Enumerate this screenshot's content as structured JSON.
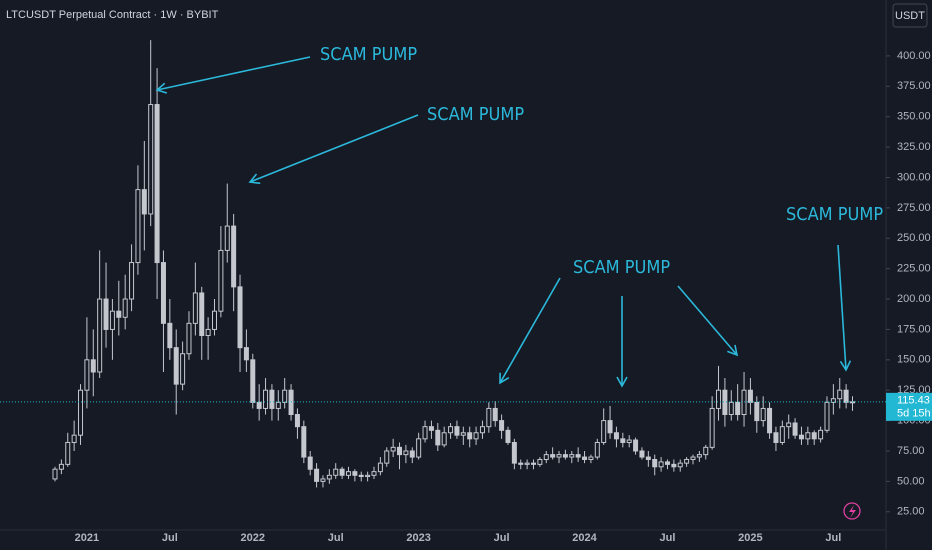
{
  "chart_data": {
    "type": "candlestick",
    "title": "LTCUSDT Perpetual Contract · 1W · BYBIT",
    "currency": "USDT",
    "annotations": [
      "SCAM PUMP",
      "SCAM PUMP",
      "SCAM PUMP",
      "SCAM PUMP"
    ],
    "last_price": 115.43,
    "countdown": "5d 15h",
    "color": "#c4c7ce",
    "last_price_color": "#22b8d4",
    "ylim": [
      10,
      446
    ],
    "yticks": [
      {
        "value": 25,
        "label": "25.00"
      },
      {
        "value": 50,
        "label": "50.00"
      },
      {
        "value": 75,
        "label": "75.00"
      },
      {
        "value": 100,
        "label": "100.00"
      },
      {
        "value": 125,
        "label": "125.00"
      },
      {
        "value": 150,
        "label": "150.00"
      },
      {
        "value": 175,
        "label": "175.00"
      },
      {
        "value": 200,
        "label": "200.00"
      },
      {
        "value": 225,
        "label": "225.00"
      },
      {
        "value": 250,
        "label": "250.00"
      },
      {
        "value": 275,
        "label": "275.00"
      },
      {
        "value": 300,
        "label": "300.00"
      },
      {
        "value": 325,
        "label": "325.00"
      },
      {
        "value": 350,
        "label": "350.00"
      },
      {
        "value": 375,
        "label": "375.00"
      },
      {
        "value": 400,
        "label": "400.00"
      }
    ],
    "categories": [
      null,
      null,
      null,
      null,
      null,
      "2021",
      null,
      null,
      null,
      null,
      null,
      null,
      null,
      null,
      null,
      null,
      null,
      null,
      "Jul",
      null,
      null,
      null,
      null,
      null,
      null,
      null,
      null,
      null,
      null,
      null,
      null,
      "2022",
      null,
      null,
      null,
      null,
      null,
      null,
      null,
      null,
      null,
      null,
      null,
      null,
      "Jul",
      null,
      null,
      null,
      null,
      null,
      null,
      null,
      null,
      null,
      null,
      null,
      null,
      "2023",
      null,
      null,
      null,
      null,
      null,
      null,
      null,
      null,
      null,
      null,
      null,
      null,
      "Jul",
      null,
      null,
      null,
      null,
      null,
      null,
      null,
      null,
      null,
      null,
      null,
      null,
      "2024",
      null,
      null,
      null,
      null,
      null,
      null,
      null,
      null,
      null,
      null,
      null,
      null,
      "Jul",
      null,
      null,
      null,
      null,
      null,
      null,
      null,
      null,
      null,
      null,
      null,
      null,
      "2025",
      null,
      null,
      null,
      null,
      null,
      null,
      null,
      null,
      null,
      null,
      null,
      null,
      "Jul",
      null,
      null,
      null
    ],
    "open": [
      52,
      60,
      64,
      82,
      88,
      125,
      150,
      140,
      200,
      175,
      190,
      185,
      200,
      230,
      290,
      270,
      360,
      230,
      180,
      160,
      130,
      155,
      180,
      205,
      170,
      175,
      190,
      240,
      260,
      210,
      160,
      150,
      115,
      110,
      125,
      110,
      115,
      125,
      105,
      95,
      70,
      60,
      50,
      52,
      55,
      60,
      55,
      58,
      55,
      54,
      55,
      58,
      65,
      75,
      78,
      72,
      75,
      70,
      85,
      95,
      92,
      80,
      90,
      95,
      88,
      90,
      85,
      90,
      95,
      110,
      100,
      92,
      82,
      65,
      64,
      65,
      64,
      68,
      72,
      70,
      72,
      70,
      72,
      70,
      68,
      70,
      82,
      100,
      90,
      85,
      82,
      84,
      75,
      70,
      68,
      62,
      66,
      64,
      62,
      65,
      68,
      70,
      72,
      78,
      110,
      125,
      105,
      115,
      105,
      125,
      115,
      100,
      110,
      90,
      82,
      95,
      98,
      88,
      85,
      90,
      85,
      92,
      115,
      118,
      125,
      115
    ],
    "high": [
      62,
      68,
      90,
      100,
      130,
      185,
      175,
      240,
      230,
      200,
      215,
      220,
      245,
      310,
      330,
      413,
      390,
      240,
      200,
      175,
      165,
      190,
      230,
      210,
      185,
      200,
      260,
      295,
      270,
      220,
      175,
      155,
      130,
      135,
      130,
      125,
      135,
      130,
      110,
      100,
      75,
      65,
      55,
      60,
      65,
      62,
      62,
      60,
      58,
      58,
      62,
      70,
      78,
      85,
      82,
      80,
      78,
      90,
      100,
      100,
      98,
      95,
      98,
      100,
      95,
      95,
      95,
      100,
      115,
      116,
      105,
      95,
      85,
      68,
      68,
      68,
      70,
      75,
      78,
      75,
      76,
      75,
      78,
      75,
      72,
      85,
      110,
      112,
      95,
      90,
      88,
      86,
      78,
      75,
      72,
      70,
      68,
      68,
      68,
      70,
      72,
      75,
      80,
      120,
      145,
      135,
      125,
      130,
      140,
      135,
      120,
      120,
      115,
      95,
      100,
      105,
      102,
      95,
      95,
      92,
      95,
      120,
      130,
      135,
      130,
      120
    ],
    "low": [
      50,
      56,
      62,
      75,
      80,
      110,
      120,
      135,
      160,
      150,
      170,
      175,
      190,
      220,
      240,
      260,
      200,
      140,
      150,
      105,
      125,
      150,
      170,
      150,
      150,
      170,
      185,
      230,
      190,
      140,
      140,
      110,
      100,
      105,
      100,
      100,
      110,
      100,
      85,
      65,
      55,
      45,
      45,
      48,
      52,
      52,
      52,
      50,
      50,
      50,
      52,
      55,
      62,
      70,
      60,
      65,
      65,
      68,
      82,
      85,
      75,
      78,
      85,
      85,
      80,
      78,
      80,
      85,
      90,
      95,
      85,
      80,
      60,
      60,
      60,
      60,
      62,
      65,
      68,
      65,
      68,
      65,
      66,
      65,
      65,
      68,
      80,
      85,
      78,
      78,
      78,
      72,
      68,
      62,
      55,
      58,
      60,
      58,
      58,
      62,
      64,
      66,
      68,
      76,
      100,
      95,
      100,
      100,
      95,
      105,
      90,
      95,
      85,
      75,
      80,
      85,
      85,
      80,
      80,
      80,
      82,
      90,
      105,
      110,
      110,
      108
    ],
    "close": [
      60,
      64,
      82,
      88,
      125,
      150,
      140,
      200,
      175,
      190,
      185,
      200,
      230,
      290,
      270,
      360,
      230,
      180,
      160,
      130,
      155,
      180,
      205,
      170,
      175,
      190,
      240,
      260,
      210,
      160,
      150,
      115,
      110,
      125,
      110,
      115,
      125,
      105,
      95,
      70,
      60,
      50,
      52,
      55,
      60,
      55,
      58,
      55,
      54,
      55,
      58,
      65,
      75,
      78,
      72,
      75,
      70,
      85,
      95,
      92,
      80,
      90,
      95,
      88,
      90,
      85,
      90,
      95,
      110,
      100,
      92,
      82,
      65,
      64,
      65,
      64,
      68,
      72,
      70,
      72,
      70,
      72,
      70,
      68,
      70,
      82,
      100,
      90,
      85,
      82,
      84,
      75,
      70,
      68,
      62,
      66,
      64,
      62,
      65,
      68,
      70,
      72,
      78,
      110,
      125,
      105,
      115,
      105,
      125,
      115,
      100,
      110,
      90,
      82,
      95,
      98,
      88,
      85,
      90,
      85,
      92,
      115,
      118,
      125,
      115,
      115.43
    ]
  }
}
